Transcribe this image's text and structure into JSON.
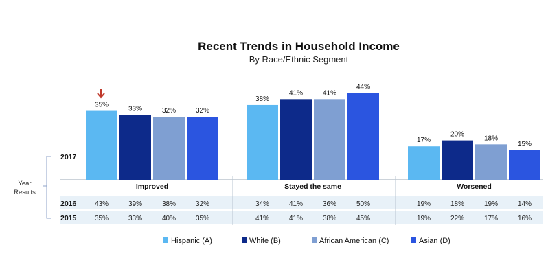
{
  "chart_data": {
    "type": "bar",
    "title": "Recent Trends in Household Income",
    "subtitle": "By Race/Ethnic Segment",
    "categories": [
      "Improved",
      "Stayed the same",
      "Worsened"
    ],
    "current_year": "2017",
    "series": [
      {
        "name": "Hispanic (A)",
        "color": "#5bb8f2",
        "values": [
          35,
          38,
          17
        ]
      },
      {
        "name": "White (B)",
        "color": "#0d2a8a",
        "values": [
          33,
          41,
          20
        ]
      },
      {
        "name": "African American (C)",
        "color": "#7f9fd2",
        "values": [
          32,
          41,
          18
        ]
      },
      {
        "name": "Asian (D)",
        "color": "#2b55e0",
        "values": [
          32,
          44,
          15
        ]
      }
    ],
    "value_suffix": "%",
    "ylim": [
      0,
      50
    ],
    "grid": false,
    "legend_position": "bottom",
    "annotation": {
      "type": "down-arrow",
      "color": "#c0392b",
      "category": "Improved",
      "series": "Hispanic (A)"
    },
    "year_results": {
      "label_line1": "Year",
      "label_line2": "Results",
      "rows": [
        {
          "year": "2016",
          "values": [
            [
              "43%",
              "39%",
              "38%",
              "32%"
            ],
            [
              "34%",
              "41%",
              "36%",
              "50%"
            ],
            [
              "19%",
              "18%",
              "19%",
              "14%"
            ]
          ]
        },
        {
          "year": "2015",
          "values": [
            [
              "35%",
              "33%",
              "40%",
              "35%"
            ],
            [
              "41%",
              "41%",
              "38%",
              "45%"
            ],
            [
              "19%",
              "22%",
              "17%",
              "16%"
            ]
          ]
        }
      ]
    }
  }
}
